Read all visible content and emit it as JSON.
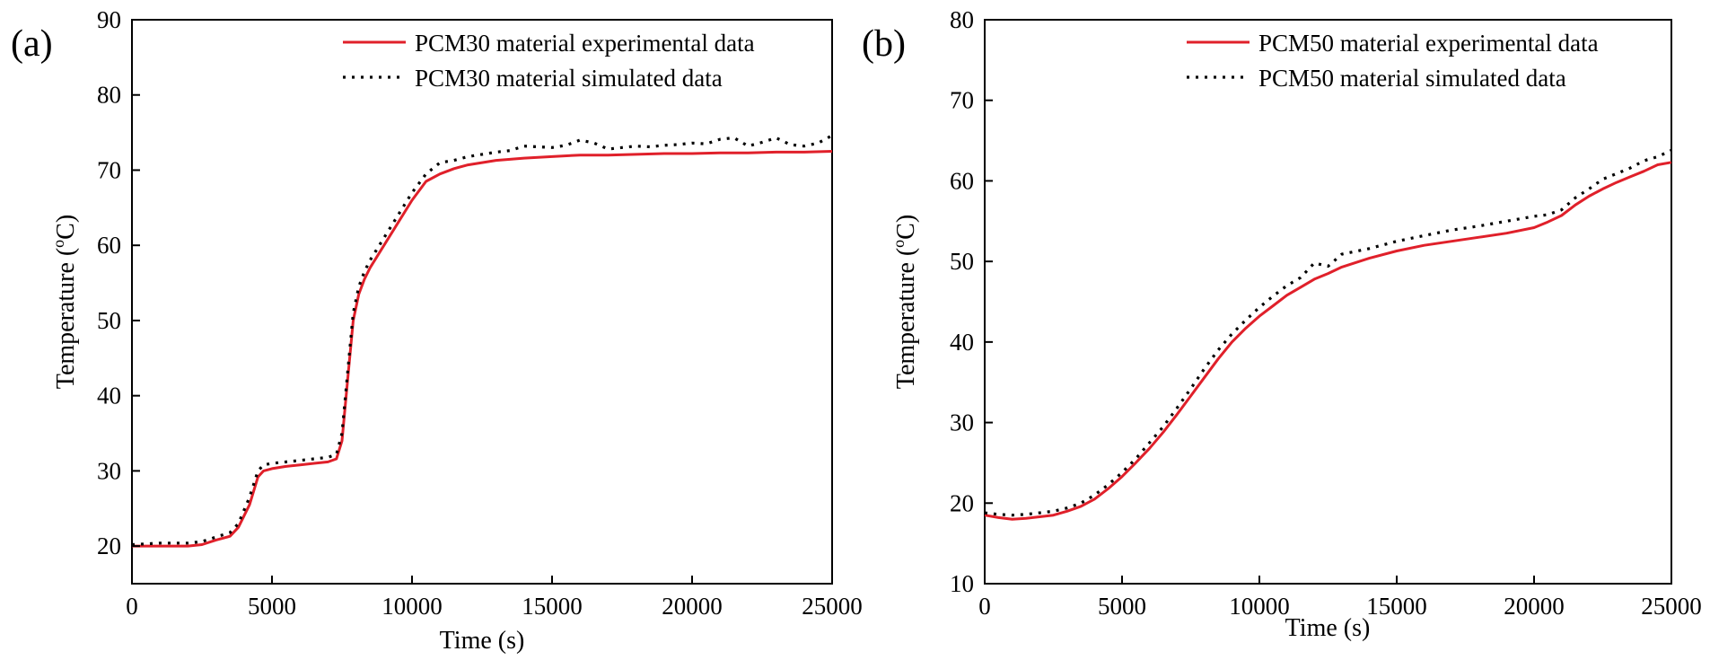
{
  "colors": {
    "experimental": "#e0202a",
    "simulated": "#000000",
    "axis": "#000000"
  },
  "chart_data": [
    {
      "type": "line",
      "panel_label": "(a)",
      "xlabel": "Time (s)",
      "ylabel_prefix": "Temperature (",
      "ylabel_sup": "o",
      "ylabel_suffix": "C)",
      "xlim": [
        0,
        25000
      ],
      "ylim": [
        15,
        90
      ],
      "xticks": [
        0,
        5000,
        10000,
        15000,
        20000,
        25000
      ],
      "xtick_labels": [
        "0",
        "5000",
        "10000",
        "15000",
        "20000",
        "25000"
      ],
      "yticks": [
        20,
        30,
        40,
        50,
        60,
        70,
        80,
        90
      ],
      "ytick_labels": [
        "20",
        "30",
        "40",
        "50",
        "60",
        "70",
        "80",
        "90"
      ],
      "legend_position": "top-right",
      "series": [
        {
          "name": "PCM30 material experimental data",
          "style": "solid",
          "x": [
            0,
            1000,
            2000,
            2500,
            3000,
            3500,
            3800,
            4200,
            4500,
            4700,
            5000,
            5500,
            6000,
            6500,
            7000,
            7300,
            7500,
            7700,
            7900,
            8100,
            8300,
            8500,
            9000,
            9500,
            10000,
            10500,
            11000,
            11500,
            12000,
            13000,
            14000,
            15000,
            16000,
            17000,
            18000,
            19000,
            20000,
            21000,
            22000,
            23000,
            24000,
            25000
          ],
          "values": [
            20,
            20,
            20,
            20.2,
            20.8,
            21.3,
            22.5,
            25.5,
            29.2,
            30,
            30.3,
            30.6,
            30.8,
            31,
            31.2,
            31.6,
            34,
            42,
            50,
            53.5,
            55.5,
            57,
            60,
            63,
            66,
            68.5,
            69.5,
            70.2,
            70.7,
            71.3,
            71.6,
            71.8,
            72,
            72,
            72.1,
            72.2,
            72.2,
            72.3,
            72.3,
            72.4,
            72.4,
            72.5
          ]
        },
        {
          "name": "PCM30 material simulated data",
          "style": "dotted",
          "x": [
            0,
            1000,
            2000,
            2500,
            3000,
            3500,
            3800,
            4200,
            4500,
            4700,
            5000,
            5500,
            6000,
            6500,
            7000,
            7300,
            7500,
            7700,
            7900,
            8100,
            8300,
            8500,
            9000,
            9500,
            10000,
            10500,
            11000,
            11500,
            12000,
            12500,
            13000,
            13500,
            14000,
            14500,
            15000,
            15500,
            16000,
            16500,
            17000,
            17500,
            18000,
            18500,
            19000,
            19500,
            20000,
            20500,
            21000,
            21500,
            22000,
            22500,
            23000,
            23500,
            24000,
            24500,
            25000
          ],
          "values": [
            20.2,
            20.4,
            20.4,
            20.6,
            21.2,
            21.8,
            23,
            26.5,
            30,
            30.8,
            31,
            31.2,
            31.4,
            31.6,
            31.8,
            32.2,
            35,
            43,
            51,
            54.5,
            56.5,
            58,
            61,
            64,
            67,
            69.5,
            71,
            71.3,
            71.8,
            72.1,
            72.4,
            72.6,
            73.2,
            73.1,
            73,
            73.3,
            74,
            73.6,
            72.8,
            73,
            73.2,
            73.1,
            73.3,
            73.4,
            73.6,
            73.5,
            74.1,
            74.3,
            73.2,
            73.7,
            74.3,
            73.4,
            73.2,
            73.6,
            74.6
          ]
        }
      ]
    },
    {
      "type": "line",
      "panel_label": "(b)",
      "xlabel": "Time (s)",
      "ylabel_prefix": "Temperature (",
      "ylabel_sup": "o",
      "ylabel_suffix": "C)",
      "xlim": [
        0,
        25000
      ],
      "ylim": [
        10,
        80
      ],
      "xticks": [
        0,
        5000,
        10000,
        15000,
        20000,
        25000
      ],
      "xtick_labels": [
        "0",
        "5000",
        "10000",
        "15000",
        "20000",
        "25000"
      ],
      "yticks": [
        10,
        20,
        30,
        40,
        50,
        60,
        70,
        80
      ],
      "ytick_labels": [
        "10",
        "20",
        "30",
        "40",
        "50",
        "60",
        "70",
        "80"
      ],
      "legend_position": "top-right",
      "series": [
        {
          "name": "PCM50 material experimental data",
          "style": "solid",
          "x": [
            0,
            500,
            1000,
            1500,
            2000,
            2500,
            3000,
            3500,
            4000,
            4500,
            5000,
            5500,
            6000,
            6500,
            7000,
            7500,
            8000,
            8500,
            9000,
            9500,
            10000,
            10500,
            11000,
            11500,
            12000,
            12500,
            13000,
            14000,
            15000,
            16000,
            17000,
            18000,
            19000,
            20000,
            20500,
            21000,
            21500,
            22000,
            22500,
            23000,
            23500,
            24000,
            24500,
            25000
          ],
          "values": [
            18.5,
            18.2,
            18,
            18.1,
            18.3,
            18.5,
            19,
            19.6,
            20.5,
            21.8,
            23.3,
            25,
            26.8,
            28.8,
            31,
            33.3,
            35.6,
            37.9,
            40,
            41.7,
            43.2,
            44.5,
            45.8,
            46.8,
            47.8,
            48.5,
            49.3,
            50.4,
            51.3,
            52,
            52.5,
            53,
            53.5,
            54.2,
            54.9,
            55.7,
            57,
            58.1,
            59,
            59.8,
            60.5,
            61.2,
            62,
            62.3
          ]
        },
        {
          "name": "PCM50 material simulated data",
          "style": "dotted",
          "x": [
            0,
            500,
            1000,
            1500,
            2000,
            2500,
            3000,
            3500,
            4000,
            4500,
            5000,
            5500,
            6000,
            6500,
            7000,
            7500,
            8000,
            8500,
            9000,
            9500,
            10000,
            10500,
            11000,
            11500,
            12000,
            12500,
            13000,
            14000,
            15000,
            16000,
            17000,
            18000,
            19000,
            20000,
            20500,
            21000,
            21500,
            22000,
            22500,
            23000,
            23500,
            24000,
            24500,
            25000
          ],
          "values": [
            18.8,
            18.6,
            18.5,
            18.6,
            18.8,
            19,
            19.4,
            20,
            21,
            22.3,
            23.8,
            25.5,
            27.5,
            29.5,
            31.8,
            34.2,
            36.7,
            39,
            41,
            42.7,
            44.3,
            45.7,
            47,
            48,
            49.8,
            49.4,
            50.9,
            51.6,
            52.5,
            53.2,
            53.9,
            54.4,
            55,
            55.6,
            55.8,
            56.4,
            57.9,
            59,
            60.2,
            60.9,
            61.6,
            62.5,
            63,
            63.8
          ]
        }
      ]
    }
  ]
}
